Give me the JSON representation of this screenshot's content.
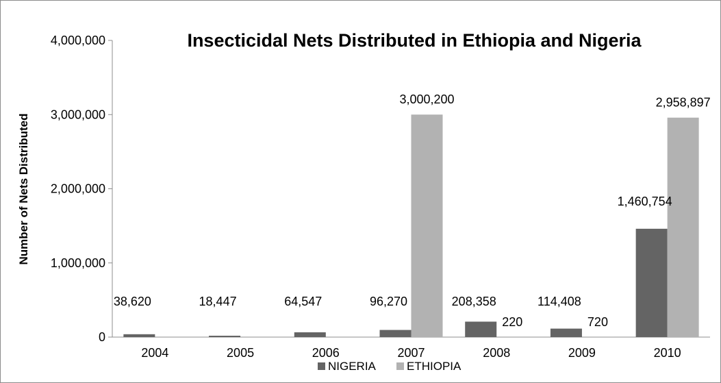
{
  "chart_data": {
    "type": "bar",
    "title": "Insecticidal Nets Distributed in Ethiopia and Nigeria",
    "xlabel": "",
    "ylabel": "Number of Nets Distributed",
    "categories": [
      "2004",
      "2005",
      "2006",
      "2007",
      "2008",
      "2009",
      "2010"
    ],
    "series": [
      {
        "name": "NIGERIA",
        "color": "#646464",
        "values": [
          38620,
          18447,
          64547,
          96270,
          208358,
          114408,
          1460754
        ],
        "labels": [
          "38,620",
          "18,447",
          "64,547",
          "96,270",
          "208,358",
          "114,408",
          "1,460,754"
        ]
      },
      {
        "name": "ETHIOPIA",
        "color": "#b2b2b2",
        "values": [
          0,
          0,
          0,
          3000200,
          220,
          720,
          2958897
        ],
        "labels": [
          "",
          "",
          "",
          "3,000,200",
          "220",
          "720",
          "2,958,897"
        ]
      }
    ],
    "ylim": [
      0,
      4000000
    ],
    "yticks": [
      0,
      1000000,
      2000000,
      3000000,
      4000000
    ],
    "ytick_labels": [
      "0",
      "1,000,000",
      "2,000,000",
      "3,000,000",
      "4,000,000"
    ],
    "grid": false,
    "legend": "bottom"
  }
}
